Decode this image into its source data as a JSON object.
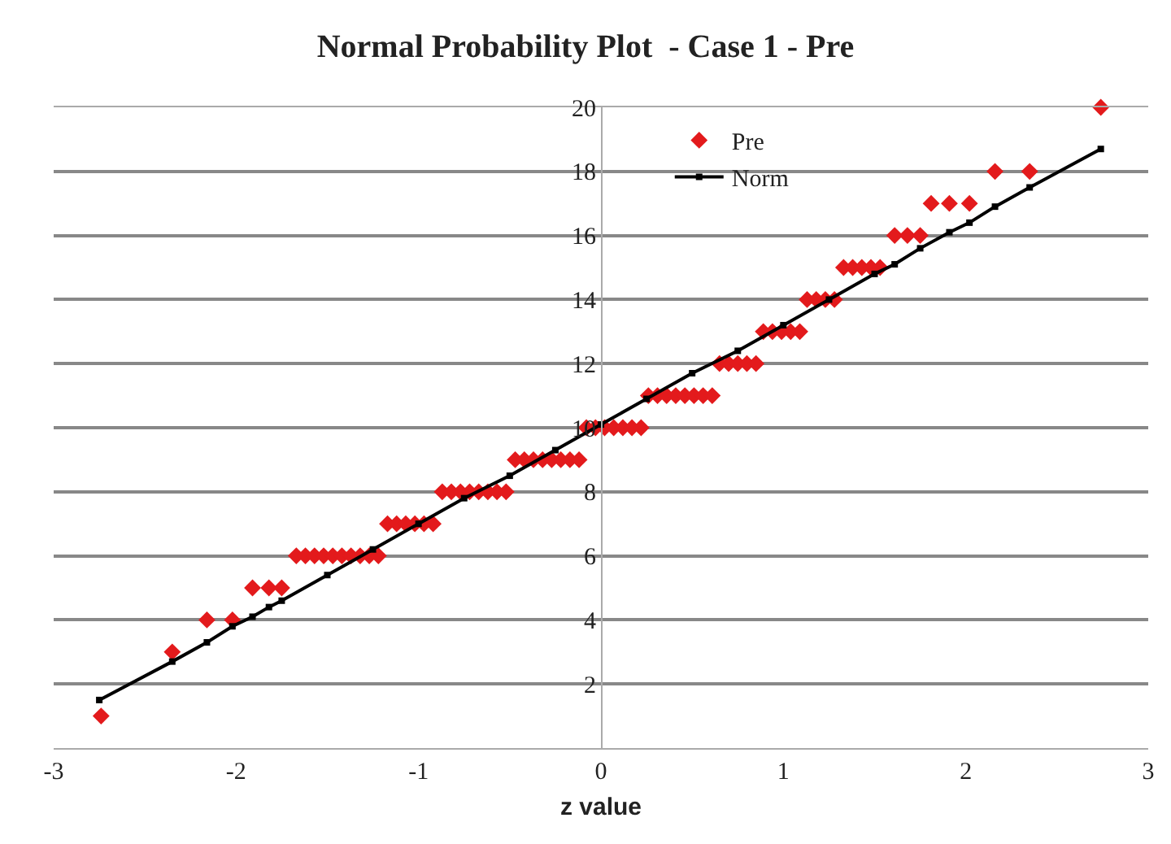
{
  "chart_data": {
    "type": "scatter",
    "title": "Normal Probability Plot  - Case 1 - Pre",
    "xlabel": "z value",
    "xlim": [
      -3,
      3
    ],
    "xticks": [
      -3,
      -2,
      -1,
      0,
      1,
      2,
      3
    ],
    "ylim": [
      0,
      20
    ],
    "yticks": [
      2,
      4,
      6,
      8,
      10,
      12,
      14,
      16,
      18,
      20
    ],
    "grid": "y",
    "legend": "top",
    "series": [
      {
        "name": "Pre",
        "marker": "diamond",
        "color": "#e31a1c",
        "x": [
          -2.74,
          -2.35,
          -2.16,
          -2.02,
          -1.91,
          -1.82,
          -1.75,
          -1.67,
          -1.62,
          -1.57,
          -1.52,
          -1.47,
          -1.42,
          -1.37,
          -1.32,
          -1.27,
          -1.22,
          -1.17,
          -1.12,
          -1.07,
          -1.02,
          -0.97,
          -0.92,
          -0.87,
          -0.82,
          -0.77,
          -0.72,
          -0.67,
          -0.62,
          -0.57,
          -0.52,
          -0.47,
          -0.42,
          -0.37,
          -0.32,
          -0.27,
          -0.22,
          -0.17,
          -0.12,
          -0.08,
          -0.03,
          0.02,
          0.07,
          0.12,
          0.17,
          0.22,
          0.26,
          0.31,
          0.36,
          0.41,
          0.46,
          0.51,
          0.56,
          0.61,
          0.65,
          0.7,
          0.75,
          0.8,
          0.85,
          0.89,
          0.94,
          0.99,
          1.04,
          1.09,
          1.13,
          1.18,
          1.23,
          1.28,
          1.33,
          1.38,
          1.43,
          1.48,
          1.53,
          1.61,
          1.68,
          1.75,
          1.81,
          1.91,
          2.02,
          2.16,
          2.35,
          2.74
        ],
        "values": [
          1,
          3,
          4,
          4,
          5,
          5,
          5,
          6,
          6,
          6,
          6,
          6,
          6,
          6,
          6,
          6,
          6,
          7,
          7,
          7,
          7,
          7,
          7,
          8,
          8,
          8,
          8,
          8,
          8,
          8,
          8,
          9,
          9,
          9,
          9,
          9,
          9,
          9,
          9,
          10,
          10,
          10,
          10,
          10,
          10,
          10,
          11,
          11,
          11,
          11,
          11,
          11,
          11,
          11,
          12,
          12,
          12,
          12,
          12,
          13,
          13,
          13,
          13,
          13,
          14,
          14,
          14,
          14,
          15,
          15,
          15,
          15,
          15,
          16,
          16,
          16,
          17,
          17,
          17,
          18,
          18,
          20
        ]
      },
      {
        "name": "Norm",
        "type": "line",
        "marker": "square",
        "line_style": "solid",
        "color": "#000000",
        "x": [
          -2.75,
          -2.35,
          -2.16,
          -2.02,
          -1.91,
          -1.82,
          -1.75,
          -1.5,
          -1.25,
          -1,
          -0.75,
          -0.5,
          -0.25,
          0,
          0.25,
          0.5,
          0.75,
          1,
          1.25,
          1.5,
          1.61,
          1.75,
          1.91,
          2.02,
          2.16,
          2.35,
          2.74
        ],
        "values": [
          1.5,
          2.7,
          3.3,
          3.8,
          4.1,
          4.4,
          4.6,
          5.4,
          6.2,
          7.0,
          7.8,
          8.5,
          9.3,
          10.1,
          10.9,
          11.7,
          12.4,
          13.2,
          14.0,
          14.8,
          15.1,
          15.6,
          16.1,
          16.4,
          16.9,
          17.5,
          18.7
        ]
      }
    ]
  }
}
